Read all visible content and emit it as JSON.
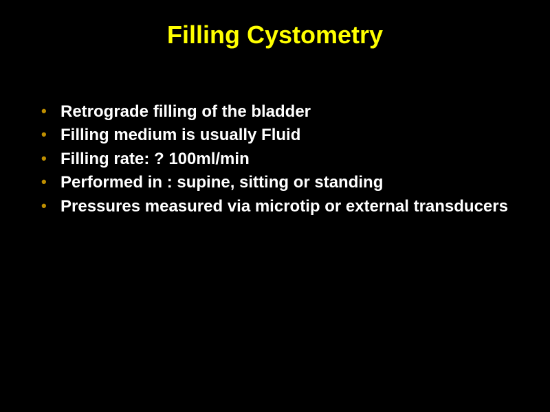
{
  "slide": {
    "title": "Filling Cystometry",
    "bullets": [
      "Retrograde filling of the bladder",
      "Filling medium is usually Fluid",
      "Filling rate: ? 100ml/min",
      "Performed in : supine, sitting or standing",
      "Pressures measured via microtip or external transducers"
    ],
    "title_color": "#ffff00",
    "text_color": "#ffffff",
    "bullet_marker_color": "#bf8f00",
    "background_color": "#000000",
    "title_fontsize": 36,
    "body_fontsize": 24
  }
}
